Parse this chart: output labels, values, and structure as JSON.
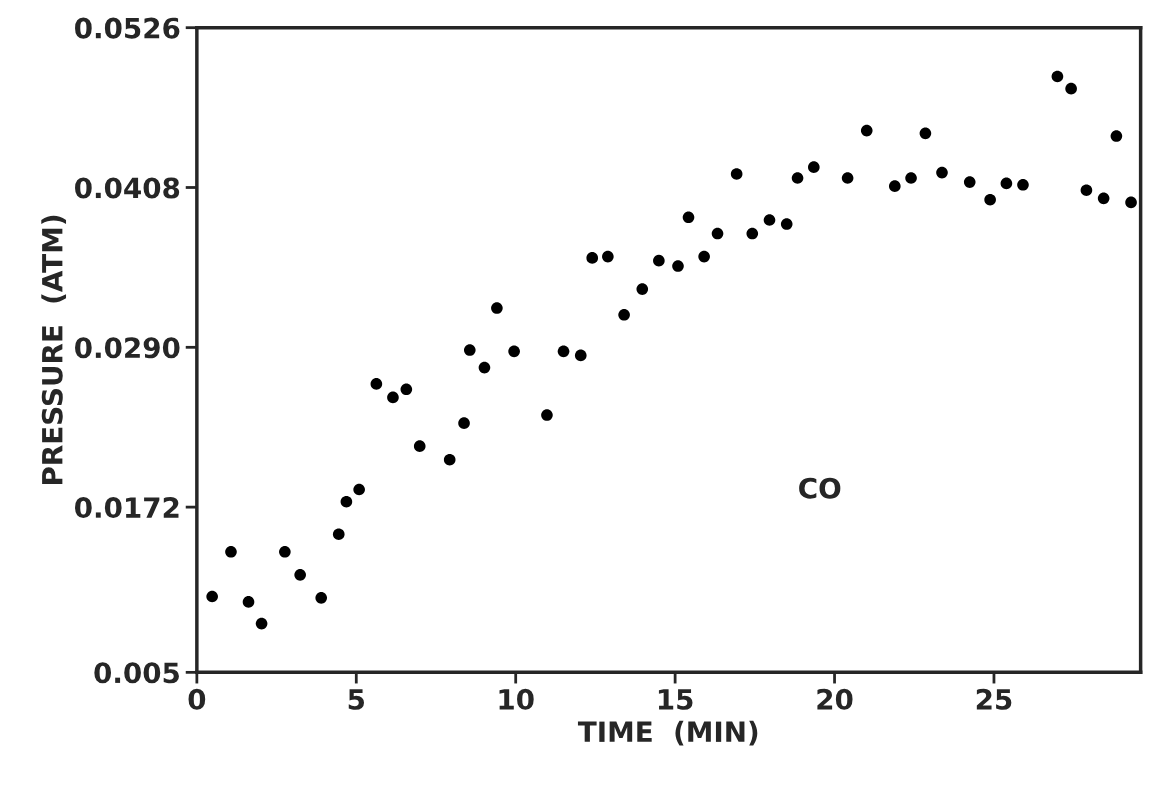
{
  "chart_data": {
    "type": "scatter",
    "xlabel": "TIME  (MIN)",
    "ylabel": "PRESSURE  (ATM)",
    "x": [
      0.48,
      1.07,
      1.62,
      2.03,
      2.76,
      3.24,
      3.9,
      4.45,
      4.69,
      5.09,
      5.63,
      6.15,
      6.57,
      6.99,
      7.93,
      8.38,
      8.56,
      9.02,
      9.41,
      9.95,
      10.98,
      11.5,
      12.04,
      12.4,
      12.89,
      13.4,
      13.97,
      14.49,
      15.09,
      15.42,
      15.91,
      16.33,
      16.93,
      17.42,
      17.96,
      18.5,
      18.84,
      19.35,
      20.41,
      21.01,
      21.89,
      22.4,
      22.85,
      23.37,
      24.24,
      24.88,
      25.39,
      25.91,
      26.99,
      27.42,
      27.9,
      28.44,
      28.84,
      29.3
    ],
    "series": [
      {
        "color": "#000000",
        "values": [
          0.0106,
          0.0139,
          0.0102,
          0.0086,
          0.0139,
          0.0122,
          0.0105,
          0.0152,
          0.0176,
          0.0185,
          0.0263,
          0.0253,
          0.0259,
          0.0217,
          0.0207,
          0.0234,
          0.0288,
          0.0275,
          0.0319,
          0.0287,
          0.024,
          0.0287,
          0.0284,
          0.0356,
          0.0357,
          0.0314,
          0.0333,
          0.0354,
          0.035,
          0.0386,
          0.0357,
          0.0374,
          0.0418,
          0.0374,
          0.0384,
          0.0381,
          0.0415,
          0.0423,
          0.0415,
          0.045,
          0.0409,
          0.0415,
          0.0448,
          0.0419,
          0.0412,
          0.0399,
          0.0411,
          0.041,
          0.049,
          0.0481,
          0.0406,
          0.04,
          0.0446,
          0.0397
        ]
      }
    ],
    "annotations": [
      "CO"
    ],
    "xlim": [
      0,
      29.6
    ],
    "xticks": [
      0,
      5,
      10,
      15,
      20,
      25
    ],
    "ylim": [
      0.005,
      0.0526
    ],
    "yticks": [
      {
        "value": 0.005,
        "label": "0.005"
      },
      {
        "value": 0.0172,
        "label": "0.0172"
      },
      {
        "value": 0.029,
        "label": "0.0290"
      },
      {
        "value": 0.0408,
        "label": "0.0408"
      },
      {
        "value": 0.0526,
        "label": "0.0526"
      }
    ],
    "marker": "circle",
    "grid": false
  }
}
